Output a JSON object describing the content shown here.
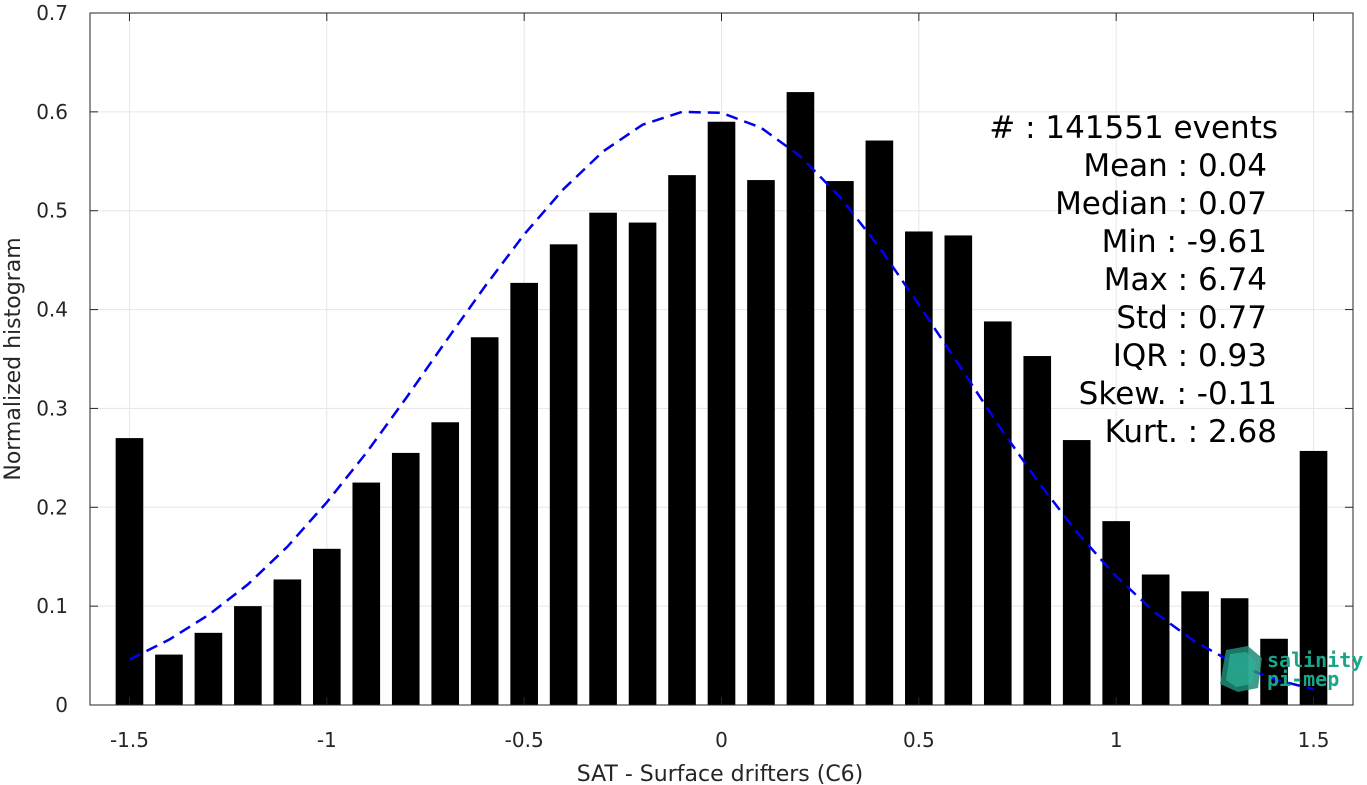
{
  "chart_data": {
    "type": "bar",
    "xlabel": "SAT - Surface drifters (C6)",
    "ylabel": "Normalized histogram",
    "xlim": [
      -1.6,
      1.6
    ],
    "ylim": [
      0,
      0.7
    ],
    "xticks": [
      -1.5,
      -1,
      -0.5,
      0,
      0.5,
      1,
      1.5
    ],
    "xtick_labels": [
      "-1.5",
      "-1",
      "-0.5",
      "0",
      "0.5",
      "1",
      "1.5"
    ],
    "yticks": [
      0,
      0.1,
      0.2,
      0.3,
      0.4,
      0.5,
      0.6,
      0.7
    ],
    "ytick_labels": [
      "0",
      "0.1",
      "0.2",
      "0.3",
      "0.4",
      "0.5",
      "0.6",
      "0.7"
    ],
    "grid": true,
    "bar_color": "#000000",
    "fit_color": "#0000ee",
    "series": [
      {
        "type": "bar",
        "x": [
          -1.5,
          -1.4,
          -1.3,
          -1.2,
          -1.1,
          -1.0,
          -0.9,
          -0.8,
          -0.7,
          -0.6,
          -0.5,
          -0.4,
          -0.3,
          -0.2,
          -0.1,
          0.0,
          0.1,
          0.2,
          0.3,
          0.4,
          0.5,
          0.6,
          0.7,
          0.8,
          0.9,
          1.0,
          1.1,
          1.2,
          1.3,
          1.4,
          1.5
        ],
        "values": [
          0.27,
          0.051,
          0.073,
          0.1,
          0.127,
          0.158,
          0.225,
          0.255,
          0.286,
          0.372,
          0.427,
          0.466,
          0.498,
          0.488,
          0.536,
          0.59,
          0.531,
          0.62,
          0.53,
          0.571,
          0.479,
          0.475,
          0.388,
          0.353,
          0.268,
          0.186,
          0.132,
          0.115,
          0.108,
          0.067,
          0.257
        ]
      },
      {
        "type": "line",
        "style": "dashed",
        "x": [
          -1.5,
          -1.4,
          -1.3,
          -1.2,
          -1.1,
          -1.0,
          -0.9,
          -0.8,
          -0.7,
          -0.6,
          -0.5,
          -0.4,
          -0.3,
          -0.2,
          -0.1,
          0.0,
          0.1,
          0.2,
          0.3,
          0.4,
          0.5,
          0.6,
          0.7,
          0.8,
          0.9,
          1.0,
          1.1,
          1.2,
          1.3,
          1.4,
          1.5
        ],
        "values": [
          0.046,
          0.066,
          0.091,
          0.122,
          0.16,
          0.205,
          0.255,
          0.31,
          0.367,
          0.423,
          0.476,
          0.522,
          0.56,
          0.587,
          0.6,
          0.599,
          0.584,
          0.555,
          0.514,
          0.463,
          0.405,
          0.345,
          0.284,
          0.227,
          0.175,
          0.13,
          0.093,
          0.064,
          0.042,
          0.026,
          0.016
        ]
      }
    ],
    "annotations": [
      "#  : 141551 events",
      "Mean : 0.04",
      "Median : 0.07",
      "Min : -9.61",
      "Max : 6.74",
      "Std : 0.77",
      "IQR : 0.93",
      "Skew. : -0.11",
      "Kurt. : 2.68"
    ],
    "logo_text": [
      "salinity",
      "pi-mep"
    ]
  }
}
